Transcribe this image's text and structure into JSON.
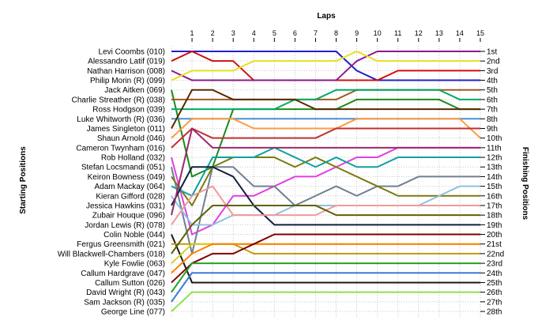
{
  "chart_data": {
    "type": "line",
    "title": "",
    "x_title": "Laps",
    "left_title": "Starting Positions",
    "right_title": "Finishing Positions",
    "laps": [
      1,
      2,
      3,
      4,
      5,
      6,
      7,
      8,
      9,
      10,
      11,
      12,
      13,
      14,
      15
    ],
    "position_count": 28,
    "finishing_labels": [
      "1st",
      "2nd",
      "3rd",
      "4th",
      "5th",
      "6th",
      "7th",
      "8th",
      "9th",
      "10th",
      "11th",
      "12th",
      "13th",
      "14th",
      "15th",
      "16th",
      "17th",
      "18th",
      "19th",
      "20th",
      "21st",
      "22nd",
      "23rd",
      "24th",
      "25th",
      "26th",
      "27th",
      "28th"
    ],
    "grid": true,
    "drivers": [
      {
        "name": "Levi Coombs (010)",
        "color": "#2020c8",
        "positions": [
          1,
          1,
          1,
          1,
          1,
          1,
          1,
          1,
          1,
          3,
          4,
          4,
          4,
          4,
          4,
          4
        ]
      },
      {
        "name": "Alessandro Latif (019)",
        "color": "#d01010",
        "positions": [
          2,
          1,
          2,
          2,
          4,
          4,
          4,
          4,
          4,
          4,
          4,
          3,
          3,
          3,
          3,
          3
        ]
      },
      {
        "name": "Nathan Harrison (008)",
        "color": "#8b1a8b",
        "positions": [
          3,
          4,
          4,
          4,
          4,
          4,
          4,
          4,
          4,
          2,
          1,
          1,
          1,
          1,
          1,
          1
        ]
      },
      {
        "name": "Philip Morin (R) (099)",
        "color": "#e8e020",
        "positions": [
          4,
          3,
          3,
          3,
          2,
          2,
          2,
          2,
          2,
          1,
          2,
          2,
          2,
          2,
          2,
          2
        ]
      },
      {
        "name": "Jack Aitken (069)",
        "color": "#1a8b1a",
        "positions": [
          5,
          14,
          13,
          7,
          7,
          7,
          7,
          7,
          7,
          6,
          6,
          6,
          6,
          6,
          7,
          7
        ]
      },
      {
        "name": "Charlie Streather (R) (038)",
        "color": "#a05a20",
        "positions": [
          6,
          6,
          6,
          6,
          6,
          6,
          6,
          6,
          6,
          5,
          5,
          5,
          5,
          5,
          5,
          5
        ]
      },
      {
        "name": "Ross Hodgson (039)",
        "color": "#00aa66",
        "positions": [
          7,
          7,
          7,
          7,
          7,
          7,
          6,
          6,
          5,
          5,
          5,
          5,
          5,
          5,
          6,
          6
        ]
      },
      {
        "name": "Luke Whitworth (R) (036)",
        "color": "#4a90d0",
        "positions": [
          8,
          8,
          8,
          8,
          8,
          8,
          8,
          8,
          8,
          8,
          8,
          8,
          8,
          8,
          8,
          8
        ]
      },
      {
        "name": "James Singleton (011)",
        "color": "#5a2a00",
        "positions": [
          9,
          5,
          5,
          6,
          6,
          6,
          6,
          7,
          7,
          7,
          7,
          7,
          7,
          7,
          7,
          7
        ]
      },
      {
        "name": "Shaun Arnold (046)",
        "color": "#ff9a40",
        "positions": [
          10,
          8,
          8,
          8,
          9,
          9,
          9,
          9,
          9,
          8,
          8,
          8,
          8,
          8,
          8,
          10
        ]
      },
      {
        "name": "Cameron Twynham (016)",
        "color": "#c03030",
        "positions": [
          11,
          9,
          10,
          10,
          10,
          10,
          10,
          10,
          9,
          9,
          9,
          9,
          9,
          9,
          9,
          9
        ]
      },
      {
        "name": "Rob Holland (032)",
        "color": "#e040e0",
        "positions": [
          12,
          20,
          19,
          16,
          16,
          15,
          14,
          14,
          13,
          12,
          12,
          11,
          11,
          11,
          11,
          11
        ]
      },
      {
        "name": "Stefan Locsmandi (051)",
        "color": "#708090",
        "positions": [
          13,
          22,
          13,
          13,
          15,
          15,
          17,
          16,
          15,
          16,
          15,
          15,
          14,
          14,
          14,
          14
        ]
      },
      {
        "name": "Keiron Bowness (049)",
        "color": "#7a7a10",
        "positions": [
          14,
          17,
          13,
          12,
          12,
          12,
          13,
          12,
          13,
          14,
          15,
          16,
          16,
          16,
          16,
          16
        ]
      },
      {
        "name": "Adam Mackay (064)",
        "color": "#10a0a0",
        "positions": [
          15,
          16,
          12,
          12,
          12,
          11,
          12,
          13,
          12,
          13,
          13,
          12,
          12,
          12,
          12,
          12
        ]
      },
      {
        "name": "Kieran Gifford (028)",
        "color": "#90c0e0",
        "positions": [
          16,
          19,
          19,
          18,
          18,
          18,
          17,
          17,
          17,
          17,
          17,
          17,
          17,
          16,
          15,
          15
        ]
      },
      {
        "name": "Jessica Hawkins (031)",
        "color": "#102040",
        "positions": [
          17,
          13,
          13,
          14,
          17,
          19,
          19,
          19,
          19,
          19,
          19,
          19,
          19,
          19,
          19,
          19
        ]
      },
      {
        "name": "Zubair Houque (096)",
        "color": "#9a2a6a",
        "positions": [
          18,
          9,
          11,
          11,
          11,
          11,
          11,
          11,
          11,
          11,
          11,
          11,
          11,
          11,
          11,
          11
        ]
      },
      {
        "name": "Jordan Lewis (R) (078)",
        "color": "#f09a9a",
        "positions": [
          19,
          16,
          15,
          18,
          18,
          18,
          18,
          18,
          17,
          17,
          17,
          17,
          17,
          17,
          17,
          17
        ]
      },
      {
        "name": "Colin Noble (044)",
        "color": "#1a1a1a",
        "positions": [
          20,
          25,
          25,
          25,
          25,
          25,
          25,
          25,
          25,
          25,
          25,
          25,
          25,
          25,
          25,
          25
        ]
      },
      {
        "name": "Fergus Greensmith (021)",
        "color": "#c09a10",
        "positions": [
          21,
          21,
          21,
          21,
          22,
          22,
          22,
          22,
          22,
          22,
          22,
          22,
          22,
          22,
          22,
          22
        ]
      },
      {
        "name": "Will Blackwell-Chambers (018)",
        "color": "#606000",
        "positions": [
          22,
          19,
          17,
          17,
          17,
          17,
          17,
          17,
          18,
          18,
          18,
          18,
          18,
          18,
          18,
          18
        ]
      },
      {
        "name": "Kyle Fowlie (063)",
        "color": "#d0d020",
        "positions": [
          23,
          21,
          21,
          21,
          21,
          21,
          21,
          21,
          21,
          21,
          21,
          21,
          21,
          21,
          21,
          21
        ]
      },
      {
        "name": "Callum Hardgrave (047)",
        "color": "#ff8000",
        "positions": [
          24,
          22,
          21,
          21,
          21,
          21,
          21,
          21,
          21,
          21,
          21,
          21,
          21,
          21,
          21,
          21
        ]
      },
      {
        "name": "Callum Sutton (026)",
        "color": "#800000",
        "positions": [
          25,
          23,
          22,
          22,
          21,
          20,
          20,
          20,
          20,
          20,
          20,
          20,
          20,
          20,
          20,
          20
        ]
      },
      {
        "name": "David Wright (R) (043)",
        "color": "#28a028",
        "positions": [
          26,
          23,
          23,
          23,
          23,
          23,
          23,
          23,
          23,
          23,
          23,
          23,
          23,
          23,
          23,
          23
        ]
      },
      {
        "name": "Sam Jackson (R) (035)",
        "color": "#3a7ad8",
        "positions": [
          27,
          24,
          24,
          24,
          24,
          24,
          24,
          24,
          24,
          24,
          24,
          24,
          24,
          24,
          24,
          24
        ]
      },
      {
        "name": "George Line (077)",
        "color": "#90e050",
        "positions": [
          28,
          26,
          26,
          26,
          26,
          26,
          26,
          26,
          26,
          26,
          26,
          26,
          26,
          26,
          26,
          26
        ]
      }
    ]
  }
}
